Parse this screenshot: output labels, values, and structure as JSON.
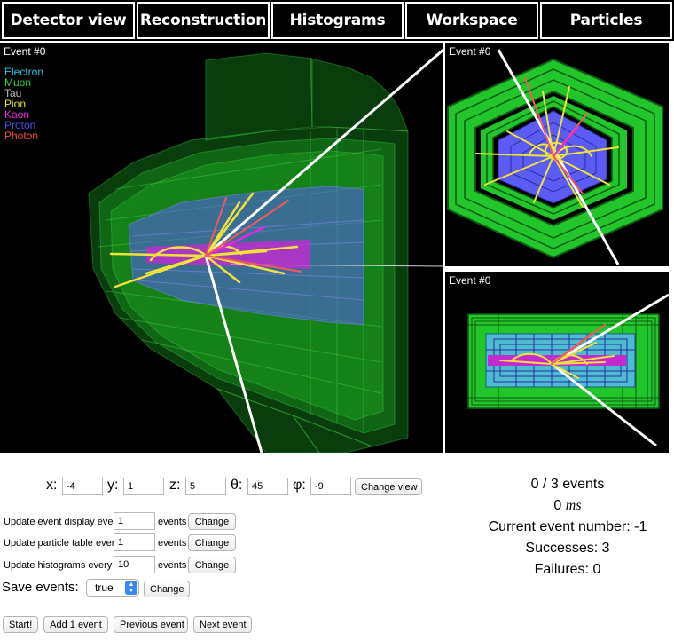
{
  "tabs": [
    {
      "label": "Detector view"
    },
    {
      "label": "Reconstruction"
    },
    {
      "label": "Histograms"
    },
    {
      "label": "Workspace"
    },
    {
      "label": "Particles"
    }
  ],
  "main_view": {
    "event_label": "Event #0"
  },
  "end_view": {
    "event_label": "Event #0"
  },
  "side_view": {
    "event_label": "Event #0"
  },
  "legend": [
    {
      "name": "Electron",
      "color": "#22c3e6"
    },
    {
      "name": "Muon",
      "color": "#2fd33f"
    },
    {
      "name": "Tau",
      "color": "#bdbdbd"
    },
    {
      "name": "Pion",
      "color": "#e8e230"
    },
    {
      "name": "Kaon",
      "color": "#e826e2"
    },
    {
      "name": "Proton",
      "color": "#4a52f0"
    },
    {
      "name": "Photon",
      "color": "#f04a4a"
    }
  ],
  "view_controls": {
    "x_label": "x:",
    "x_value": "-4",
    "y_label": "y:",
    "y_value": "1",
    "z_label": "z:",
    "z_value": "5",
    "theta_label": "θ:",
    "theta_value": "45",
    "phi_label": "φ:",
    "phi_value": "-9",
    "change_view_label": "Change view"
  },
  "update_controls": [
    {
      "label": "Update event display every",
      "value": "1",
      "unit": "events",
      "button": "Change"
    },
    {
      "label": "Update particle table every",
      "value": "1",
      "unit": "events",
      "button": "Change"
    },
    {
      "label": "Update histograms every",
      "value": "10",
      "unit": "events",
      "button": "Change"
    }
  ],
  "save_events": {
    "label": "Save events:",
    "value": "true",
    "button": "Change"
  },
  "actions": {
    "start": "Start!",
    "add_one": "Add 1 event",
    "previous": "Previous event",
    "next": "Next event"
  },
  "status": {
    "events": "0 / 3 events",
    "time_value": "0",
    "time_unit": "ms",
    "current_event": "Current event number: -1",
    "successes": "Successes: 3",
    "failures": "Failures: 0"
  },
  "colors": {
    "calorimeter_green": "#22c62a",
    "tracker_blue": "#5a5cf5",
    "inner_magenta": "#c42ad0",
    "beam_white": "#ffffff",
    "track_yellow": "#f0e23a",
    "track_red": "#f05a5a",
    "select_accent": "#3b88f5"
  }
}
